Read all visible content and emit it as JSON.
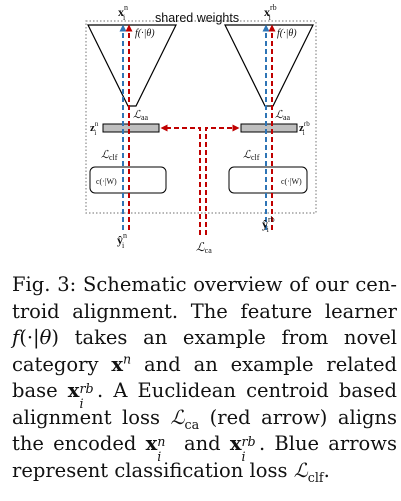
{
  "diagram": {
    "shared_weights_label": "shared weights",
    "left": {
      "input_x": "x",
      "input_sup": "n",
      "input_sub": "i",
      "f_label": "f(·|θ)",
      "loss_aa": "ℒ",
      "loss_aa_sub": "aa",
      "z_label": "z",
      "z_sup": "n",
      "z_sub": "i",
      "loss_clf": "ℒ",
      "loss_clf_sub": "clf",
      "classifier_label": "c(·|W)",
      "output_y": "ŷ",
      "output_sup": "n",
      "output_sub": "i"
    },
    "right": {
      "input_x": "x",
      "input_sup": "rb",
      "input_sub": "i",
      "f_label": "f(·|θ)",
      "loss_aa": "ℒ",
      "loss_aa_sub": "aa",
      "z_label": "z",
      "z_sup": "rb",
      "z_sub": "i",
      "loss_clf": "ℒ",
      "loss_clf_sub": "clf",
      "classifier_label": "c(·|W)",
      "output_y": "ŷ",
      "output_sup": "rb",
      "output_sub": "i"
    },
    "loss_ca": "ℒ",
    "loss_ca_sub": "ca",
    "colors": {
      "red_arrow": "#c00000",
      "blue_arrow": "#2e75b6",
      "outline": "#000000",
      "dotted_border": "#7f7f7f",
      "bar_fill": "#bfbfbf"
    }
  },
  "caption": {
    "l1": "Fig. 3: Schematic overview of our cen-",
    "l2": "troid alignment. The feature learner",
    "l3_a": "f",
    "l3_b": "(·|",
    "l3_c": "θ",
    "l3_d": ") takes an example from novel",
    "l4_a": "category ",
    "l4_b": "x",
    "l4_sup": "n",
    "l4_c": " and an example related",
    "l5_a": "base ",
    "l5_b": "x",
    "l5_sup": "rb",
    "l5_sub": "i",
    "l5_c": ". A Euclidean centroid based",
    "l6_a": "alignment loss ",
    "l6_b": "ℒ",
    "l6_sub": "ca",
    "l6_c": " (red arrow) aligns",
    "l7_a": "the encoded ",
    "l7_b": "x",
    "l7_sup1": "n",
    "l7_sub1": "i",
    "l7_c": " and ",
    "l7_d": "x",
    "l7_sup2": "rb",
    "l7_sub2": "i",
    "l7_e": ". Blue arrows",
    "l8_a": "represent classification loss ",
    "l8_b": "ℒ",
    "l8_sub": "clf",
    "l8_c": "."
  }
}
